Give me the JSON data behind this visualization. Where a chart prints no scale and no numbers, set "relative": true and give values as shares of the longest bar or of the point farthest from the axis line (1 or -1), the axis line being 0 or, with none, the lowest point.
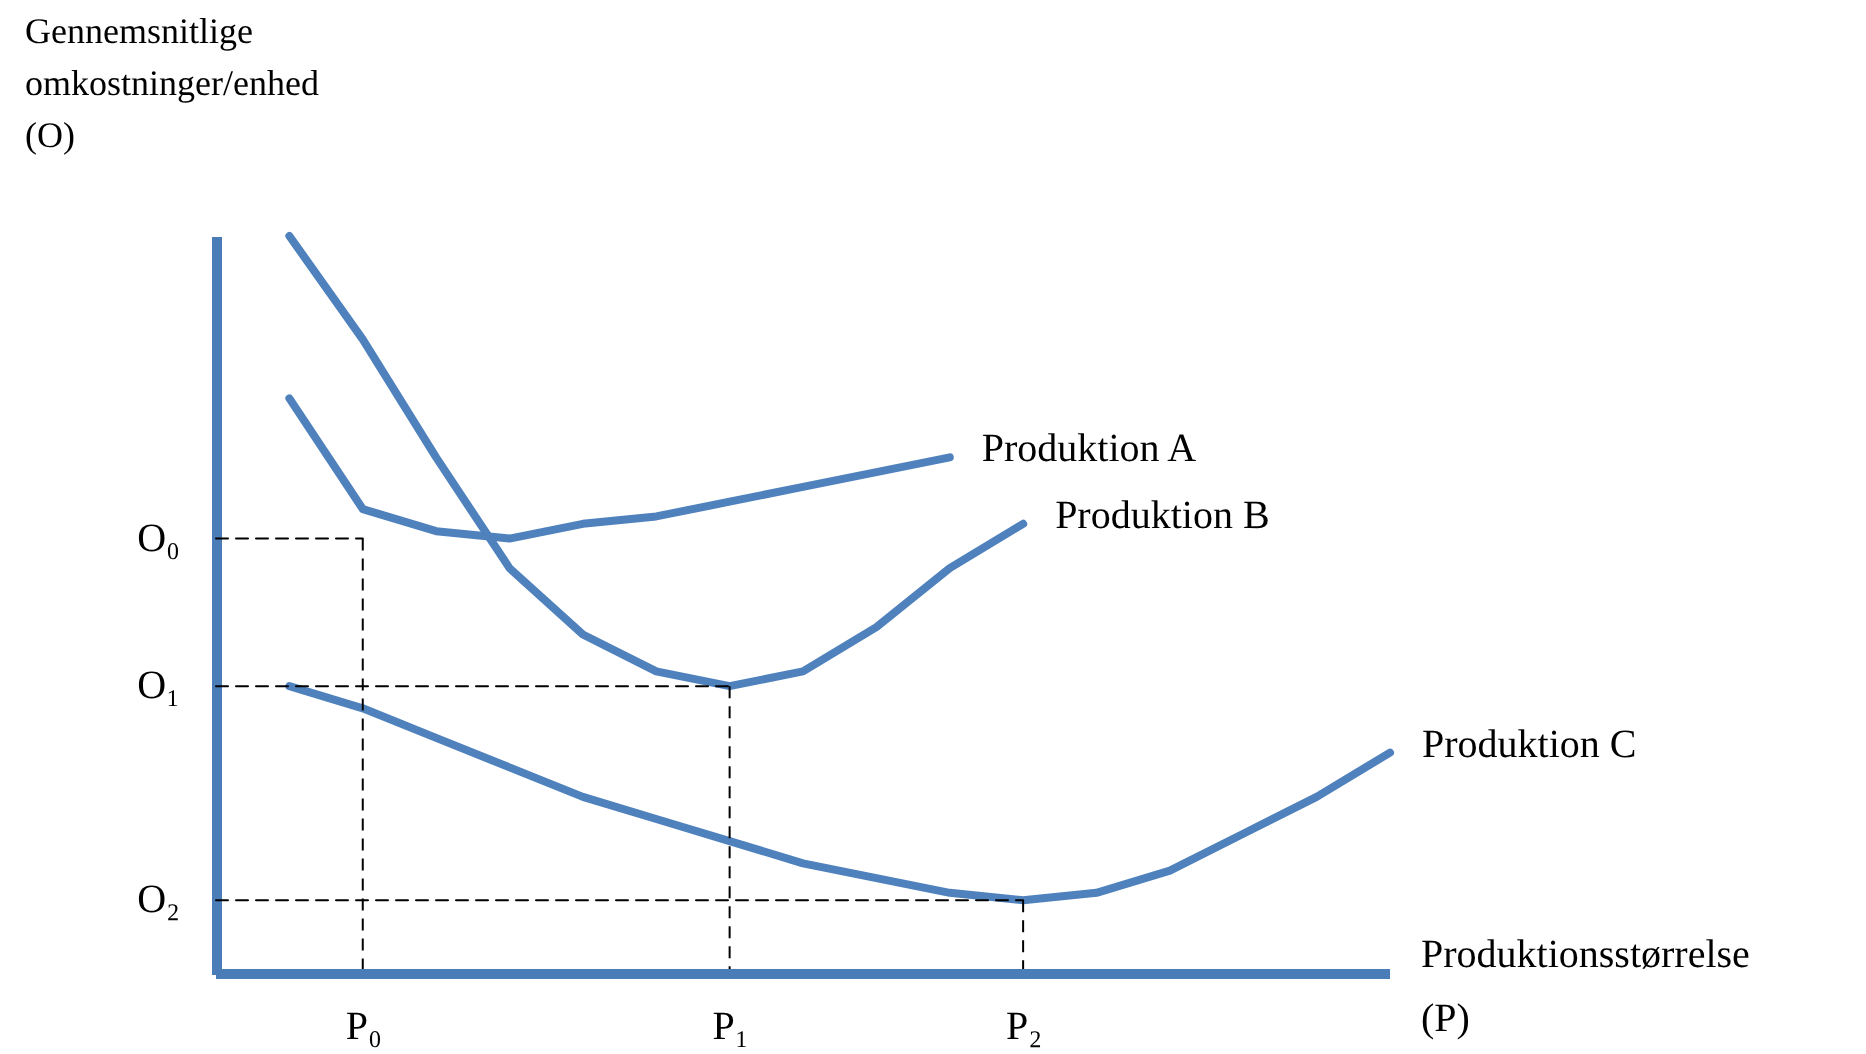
{
  "chart_data": {
    "type": "line",
    "relative": true,
    "xlabel": "Produktionsstørrelse (P)",
    "ylabel": "Gennemsnitlige omkostninger/enhed (O)",
    "categories": [
      null,
      null,
      "P₀",
      null,
      null,
      null,
      null,
      "P₁",
      null,
      null,
      null,
      "P₂",
      null,
      null,
      null,
      null,
      null
    ],
    "ref_lines": [
      {
        "axis": "y",
        "value": 0,
        "color": "#4a7cb8"
      }
    ],
    "series": [
      {
        "name": "Produktion A",
        "color": "#4f81bd",
        "values": [
          null,
          0.78,
          0.63,
          0.6,
          0.59,
          0.61,
          0.62,
          0.64,
          0.66,
          0.68,
          0.7,
          null,
          null,
          null,
          null,
          null,
          null
        ]
      },
      {
        "name": "Produktion B",
        "color": "#4f81bd",
        "values": [
          null,
          1,
          0.86,
          0.7,
          0.55,
          0.46,
          0.41,
          0.39,
          0.41,
          0.47,
          0.55,
          0.61,
          null,
          null,
          null,
          null,
          null
        ]
      },
      {
        "name": "Produktion C",
        "color": "#4f81bd",
        "values": [
          null,
          0.39,
          0.36,
          0.32,
          0.28,
          0.24,
          0.21,
          0.18,
          0.15,
          0.13,
          0.11,
          0.1,
          0.11,
          0.14,
          0.19,
          0.24,
          0.3
        ]
      },
      {
        "name": "O₀",
        "color": "#000000",
        "line_style": "dashed",
        "values": [
          0.59,
          0.59,
          0.59,
          null,
          null,
          null,
          null,
          null,
          null,
          null,
          null,
          null,
          null,
          null,
          null,
          null,
          null
        ]
      },
      {
        "name": "O₁",
        "color": "#000000",
        "line_style": "dashed",
        "values": [
          0.39,
          0.39,
          0.39,
          0.39,
          0.39,
          0.39,
          0.39,
          0.39,
          null,
          null,
          null,
          null,
          null,
          null,
          null,
          null,
          null
        ]
      },
      {
        "name": "O₂",
        "color": "#000000",
        "line_style": "dashed",
        "values": [
          0.1,
          0.1,
          0.1,
          0.1,
          0.1,
          0.1,
          0.1,
          0.1,
          0.1,
          0.1,
          0.1,
          0.1,
          null,
          null,
          null,
          null,
          null
        ]
      }
    ]
  }
}
